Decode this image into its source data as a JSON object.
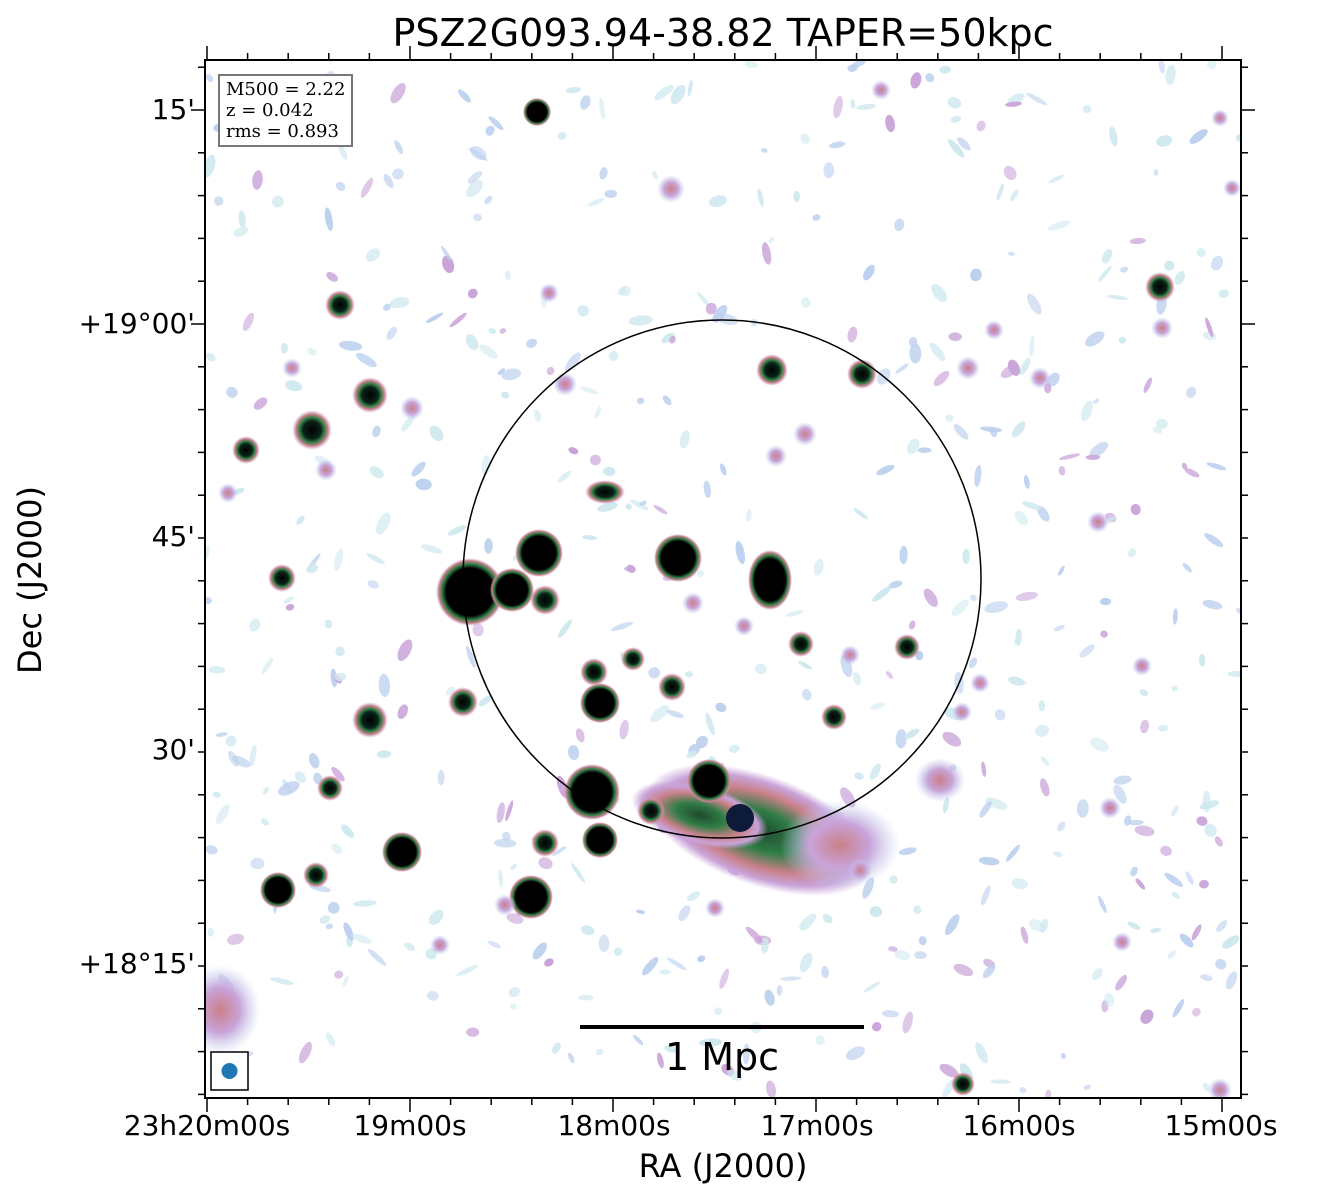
{
  "title": "PSZ2G093.94-38.82 TAPER=50kpc",
  "xlabel": "RA (J2000)",
  "ylabel": "Dec (J2000)",
  "x_ticks": [
    "23h20m00s",
    "19m00s",
    "18m00s",
    "17m00s",
    "16m00s",
    "15m00s"
  ],
  "y_ticks": [
    "15'",
    "+19°00'",
    "45'",
    "30'",
    "+18°15'"
  ],
  "info": {
    "mass": "M500 = 2.22",
    "redshift": "z = 0.042",
    "rms": "rms = 0.893"
  },
  "scale_bar": {
    "label": "1 Mpc"
  },
  "colors": {
    "faint": "#bcd0ee",
    "pale": "#cfe9ef",
    "pink": "#c9a3d9",
    "rose": "#c98088",
    "green": "#2f7d46",
    "core": "#000000",
    "beam": "#1f77b4"
  },
  "icons": [
    "beam-ellipse-icon"
  ]
}
